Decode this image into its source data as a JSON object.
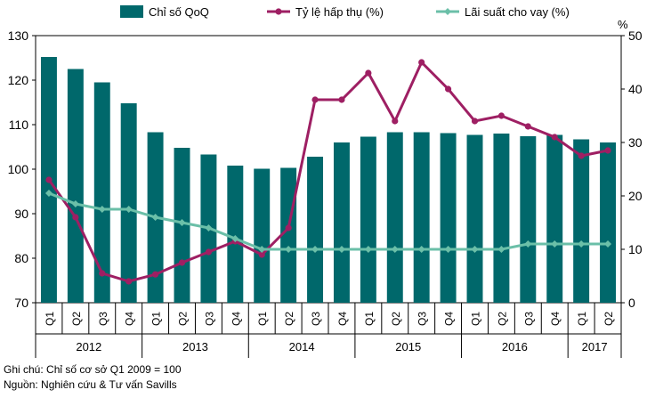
{
  "chart_data": {
    "type": "bar",
    "categories": [
      "Q1",
      "Q2",
      "Q3",
      "Q4",
      "Q1",
      "Q2",
      "Q3",
      "Q4",
      "Q1",
      "Q2",
      "Q3",
      "Q4",
      "Q1",
      "Q2",
      "Q3",
      "Q4",
      "Q1",
      "Q2",
      "Q3",
      "Q4",
      "Q1",
      "Q2"
    ],
    "year_groups": [
      {
        "label": "2012",
        "count": 4
      },
      {
        "label": "2013",
        "count": 4
      },
      {
        "label": "2014",
        "count": 4
      },
      {
        "label": "2015",
        "count": 4
      },
      {
        "label": "2016",
        "count": 4
      },
      {
        "label": "2017",
        "count": 2
      }
    ],
    "series": [
      {
        "name": "Chỉ số QoQ",
        "kind": "bar",
        "axis": "left",
        "color": "#00686B",
        "values": [
          125.2,
          122.5,
          119.5,
          114.8,
          108.3,
          104.8,
          103.3,
          100.8,
          100.1,
          100.3,
          102.8,
          106.0,
          107.3,
          108.3,
          108.3,
          108.1,
          107.7,
          108.0,
          107.4,
          107.7,
          106.7,
          106.0
        ]
      },
      {
        "name": "Tỷ lệ hấp thụ (%)",
        "kind": "line",
        "axis": "right",
        "color": "#9E1F63",
        "values": [
          23.0,
          16.0,
          5.5,
          4.0,
          5.3,
          7.5,
          9.5,
          11.5,
          9.0,
          14.0,
          38.0,
          38.0,
          43.0,
          34.0,
          45.0,
          40.0,
          34.0,
          35.0,
          33.0,
          31.0,
          27.5,
          28.5
        ]
      },
      {
        "name": "Lãi suất cho vay (%)",
        "kind": "line",
        "axis": "right",
        "color": "#6BBFA8",
        "values": [
          20.5,
          18.5,
          17.5,
          17.5,
          16.0,
          15.0,
          14.0,
          12.0,
          10.0,
          10.0,
          10.0,
          10.0,
          10.0,
          10.0,
          10.0,
          10.0,
          10.0,
          10.0,
          11.0,
          11.0,
          11.0,
          11.0
        ]
      }
    ],
    "ylim": [
      70,
      130
    ],
    "yticks": [
      70,
      80,
      90,
      100,
      110,
      120,
      130
    ],
    "y2lim": [
      0,
      50
    ],
    "y2ticks": [
      0,
      10,
      20,
      30,
      40,
      50
    ],
    "y2unit": "%",
    "legend_position": "top",
    "grid": false
  },
  "notes": {
    "line1": "Ghi chú: Chỉ số cơ sở  Q1 2009 = 100",
    "line2": "Nguồn: Nghiên cứu & Tư vấn Savills"
  }
}
